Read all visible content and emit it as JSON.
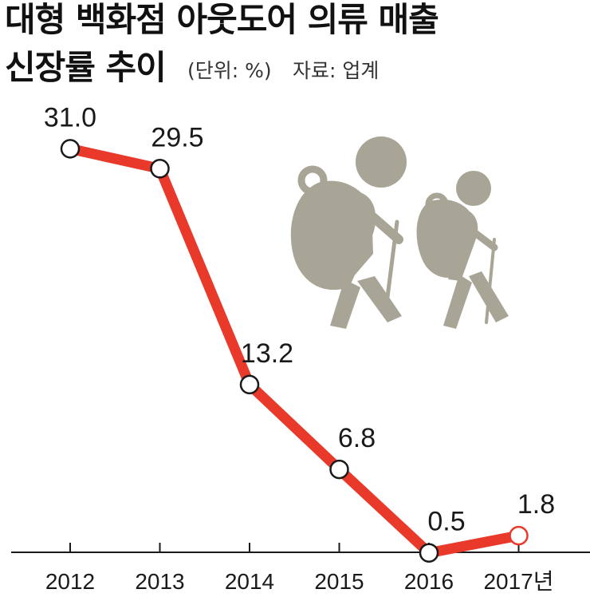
{
  "title_line1": "대형 백화점 아웃도어 의류 매출",
  "title_line2": "신장률 추이",
  "unit": "(단위: %)",
  "source": "자료: 업계",
  "colors": {
    "line": "#e8392a",
    "marker_fill": "#ffffff",
    "marker_stroke": "#1a1a1a",
    "last_marker_stroke": "#e8392a",
    "axis": "#1a1a1a",
    "illustration": "#a8a597"
  },
  "illustration": "two-hikers-icon",
  "chart_data": {
    "type": "line",
    "title": "대형 백화점 아웃도어 의류 매출 신장률 추이",
    "categories": [
      "2012",
      "2013",
      "2014",
      "2015",
      "2016",
      "2017년"
    ],
    "series": [
      {
        "values": [
          31.0,
          29.5,
          13.2,
          6.8,
          0.5,
          1.8
        ]
      }
    ],
    "value_labels": [
      "31.0",
      "29.5",
      "13.2",
      "6.8",
      "0.5",
      "1.8"
    ],
    "unit": "%",
    "grid": false,
    "legend": "none"
  }
}
